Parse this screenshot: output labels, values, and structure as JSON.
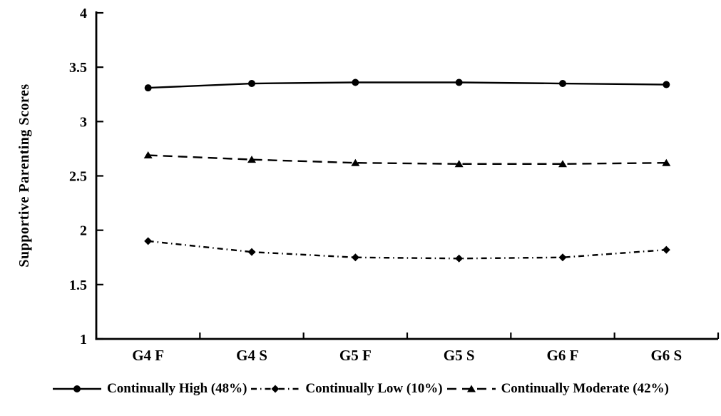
{
  "chart_data": {
    "type": "line",
    "title": "",
    "ylabel": "Supportive Parenting Scores",
    "xlabel": "",
    "categories": [
      "G4 F",
      "G4 S",
      "G5 F",
      "G5 S",
      "G6 F",
      "G6 S"
    ],
    "ylim": [
      1,
      4
    ],
    "yticks": [
      1,
      1.5,
      2,
      2.5,
      3,
      3.5,
      4
    ],
    "grid": false,
    "legend_position": "bottom",
    "axis_color": "#000000",
    "series": [
      {
        "name": "Continually High (48%)",
        "marker": "circle",
        "line_style": "solid",
        "color": "#000000",
        "values": [
          3.31,
          3.35,
          3.36,
          3.36,
          3.35,
          3.34
        ]
      },
      {
        "name": "Continually Low (10%)",
        "marker": "diamond",
        "line_style": "dashdot",
        "color": "#000000",
        "values": [
          1.9,
          1.8,
          1.75,
          1.74,
          1.75,
          1.82
        ]
      },
      {
        "name": "Continually Moderate (42%)",
        "marker": "triangle",
        "line_style": "dash",
        "color": "#000000",
        "values": [
          2.69,
          2.65,
          2.62,
          2.61,
          2.61,
          2.62
        ]
      }
    ]
  }
}
